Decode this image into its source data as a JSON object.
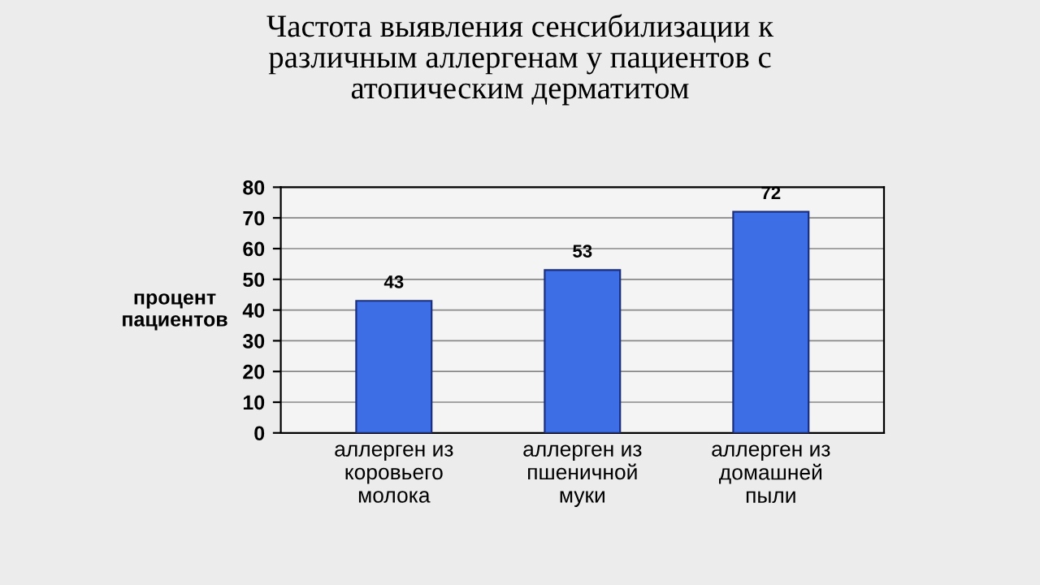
{
  "chart_data": {
    "type": "bar",
    "title": "Частота выявления сенсибилизации к\nразличным аллергенам у пациентов с\nатопическим дерматитом",
    "ylabel": "процент\nпациентов",
    "categories": [
      "аллерген из\nкоровьего\nмолока",
      "аллерген из\nпшеничной\nмуки",
      "аллерген из\nдомашней\nпыли"
    ],
    "values": [
      43,
      53,
      72
    ],
    "color": "#3d6ee6",
    "ylim": [
      0,
      80
    ],
    "yticks": [
      0,
      10,
      20,
      30,
      40,
      50,
      60,
      70,
      80
    ],
    "grid": "y",
    "data_labels": true
  }
}
